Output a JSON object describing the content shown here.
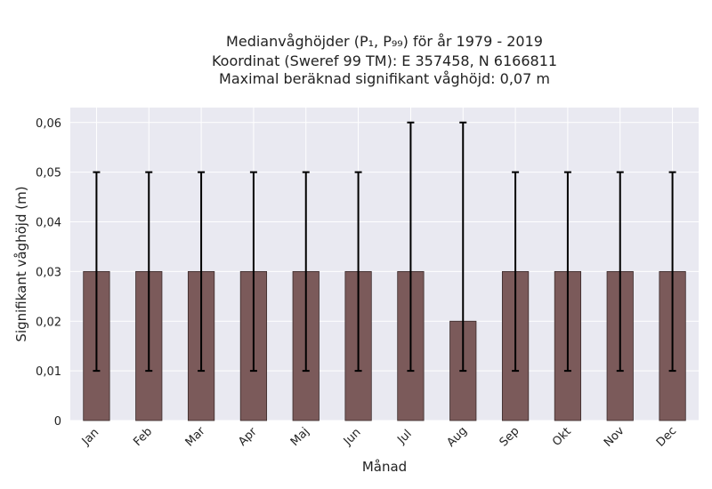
{
  "chart_data": {
    "type": "bar",
    "title_lines": [
      "Medianvåghöjder (P₁, P₉₉) för år 1979 - 2019",
      "Koordinat (Sweref 99 TM): E 357458, N 6166811",
      "Maximal beräknad signifikant våghöjd: 0,07 m"
    ],
    "xlabel": "Månad",
    "ylabel": "Signifikant våghöjd (m)",
    "categories": [
      "Jan",
      "Feb",
      "Mar",
      "Apr",
      "Maj",
      "Jun",
      "Jul",
      "Aug",
      "Sep",
      "Okt",
      "Nov",
      "Dec"
    ],
    "values": [
      0.03,
      0.03,
      0.03,
      0.03,
      0.03,
      0.03,
      0.03,
      0.02,
      0.03,
      0.03,
      0.03,
      0.03
    ],
    "error_low": [
      0.01,
      0.01,
      0.01,
      0.01,
      0.01,
      0.01,
      0.01,
      0.01,
      0.01,
      0.01,
      0.01,
      0.01
    ],
    "error_high": [
      0.05,
      0.05,
      0.05,
      0.05,
      0.05,
      0.05,
      0.06,
      0.06,
      0.05,
      0.05,
      0.05,
      0.05
    ],
    "ylim": [
      0,
      0.063
    ],
    "yticks": [
      0,
      0.01,
      0.02,
      0.03,
      0.04,
      0.05,
      0.06
    ],
    "ytick_labels": [
      "0",
      "0,01",
      "0,02",
      "0,03",
      "0,04",
      "0,05",
      "0,06"
    ],
    "grid": true,
    "colors": {
      "bar": "#7b5a5a",
      "bar_edge": "#3a2a2a",
      "errorbar": "#000000",
      "plot_background": "#e9e9f1",
      "grid": "#ffffff"
    }
  }
}
